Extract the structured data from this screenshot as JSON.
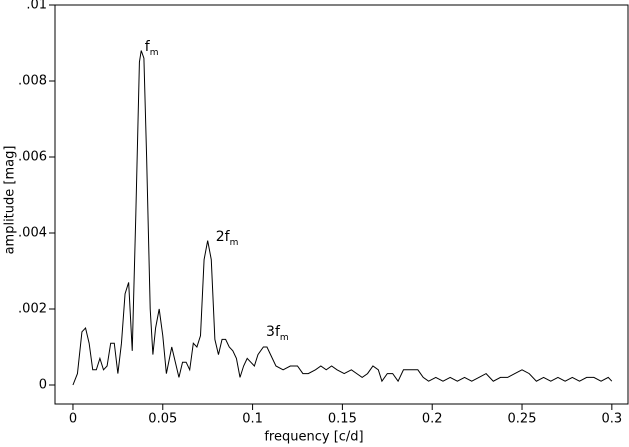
{
  "chart_data": {
    "type": "line",
    "x_label": "frequency [c/d]",
    "y_label": "amplitude [mag]",
    "color": "#000000",
    "xlim": [
      -0.01,
      0.309
    ],
    "ylim": [
      -0.0005,
      0.01
    ],
    "xticks": [
      0,
      0.05,
      0.1,
      0.15,
      0.2,
      0.25,
      0.3
    ],
    "yticks": [
      0,
      {
        "value": 0.002,
        "label": ".002"
      },
      {
        "value": 0.004,
        "label": ".004"
      },
      {
        "value": 0.006,
        "label": ".006"
      },
      {
        "value": 0.008,
        "label": ".008"
      },
      {
        "value": 0.01,
        "label": ".01"
      }
    ],
    "x": [
      0,
      0.0025,
      0.005,
      0.007,
      0.009,
      0.011,
      0.013,
      0.015,
      0.017,
      0.019,
      0.021,
      0.023,
      0.025,
      0.027,
      0.029,
      0.031,
      0.033,
      0.035,
      0.037,
      0.038,
      0.0395,
      0.041,
      0.043,
      0.0445,
      0.046,
      0.048,
      0.05,
      0.052,
      0.055,
      0.057,
      0.059,
      0.061,
      0.063,
      0.065,
      0.067,
      0.069,
      0.071,
      0.073,
      0.075,
      0.077,
      0.079,
      0.081,
      0.083,
      0.085,
      0.087,
      0.089,
      0.091,
      0.093,
      0.095,
      0.097,
      0.099,
      0.101,
      0.103,
      0.106,
      0.108,
      0.11,
      0.113,
      0.117,
      0.121,
      0.125,
      0.128,
      0.131,
      0.135,
      0.138,
      0.141,
      0.144,
      0.147,
      0.151,
      0.155,
      0.158,
      0.161,
      0.164,
      0.167,
      0.17,
      0.172,
      0.175,
      0.178,
      0.181,
      0.184,
      0.188,
      0.192,
      0.195,
      0.198,
      0.202,
      0.206,
      0.21,
      0.214,
      0.218,
      0.222,
      0.226,
      0.23,
      0.234,
      0.238,
      0.242,
      0.246,
      0.25,
      0.254,
      0.258,
      0.262,
      0.266,
      0.27,
      0.274,
      0.278,
      0.282,
      0.286,
      0.29,
      0.294,
      0.298,
      0.3
    ],
    "values": [
      0,
      0.0003,
      0.0014,
      0.0015,
      0.0011,
      0.0004,
      0.0004,
      0.0007,
      0.0004,
      0.0005,
      0.0011,
      0.0011,
      0.0003,
      0.0011,
      0.0024,
      0.0027,
      0.0009,
      0.0045,
      0.0085,
      0.0088,
      0.0086,
      0.006,
      0.002,
      0.0008,
      0.0015,
      0.002,
      0.0013,
      0.0003,
      0.001,
      0.0006,
      0.0002,
      0.0006,
      0.0006,
      0.0004,
      0.0011,
      0.001,
      0.0013,
      0.0033,
      0.0038,
      0.0033,
      0.0012,
      0.0008,
      0.0012,
      0.0012,
      0.001,
      0.0009,
      0.0007,
      0.0002,
      0.0005,
      0.0007,
      0.0006,
      0.0005,
      0.0008,
      0.001,
      0.001,
      0.0008,
      0.0005,
      0.0004,
      0.0005,
      0.0005,
      0.0003,
      0.0003,
      0.0004,
      0.0005,
      0.0004,
      0.0005,
      0.0004,
      0.0003,
      0.0004,
      0.0003,
      0.0002,
      0.0003,
      0.0005,
      0.0004,
      0.0001,
      0.0003,
      0.0003,
      0.0001,
      0.0004,
      0.0004,
      0.0004,
      0.0002,
      0.0001,
      0.0002,
      0.0001,
      0.0002,
      0.0001,
      0.0002,
      0.0001,
      0.0002,
      0.0003,
      0.0001,
      0.0002,
      0.0002,
      0.0003,
      0.0004,
      0.0003,
      0.0001,
      0.0002,
      0.0001,
      0.0002,
      0.0001,
      0.0002,
      0.0001,
      0.0002,
      0.0002,
      0.0001,
      0.0002,
      0.0001
    ],
    "annotations": [
      {
        "text": "f",
        "sub": "m",
        "x": 0.04,
        "y": 0.0089
      },
      {
        "text": "2f",
        "sub": "m",
        "x": 0.0795,
        "y": 0.0039
      },
      {
        "text": "3f",
        "sub": "m",
        "x": 0.1075,
        "y": 0.0014
      }
    ]
  }
}
